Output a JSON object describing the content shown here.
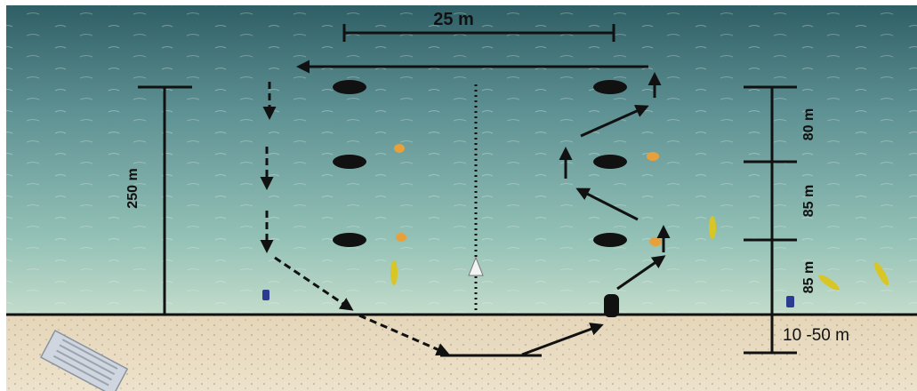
{
  "diagram": {
    "width_label": "25 m",
    "length_label": "250 m",
    "segment_labels": [
      "80 m",
      "85 m",
      "85 m"
    ],
    "beach_label": "10 -50 m"
  },
  "colors": {
    "sea_top": "#2f5f66",
    "sea_mid": "#7fb0ad",
    "sea_shallow": "#b9d6c8",
    "sand": "#e7d7bb",
    "ink": "#111111",
    "kayak": "#d8c526",
    "buoy_orange": "#e8a13a"
  },
  "icons": [
    "buoy-marker",
    "start-marker",
    "rescue-boat-icon",
    "kayak-icon",
    "beach-hut-icon"
  ]
}
